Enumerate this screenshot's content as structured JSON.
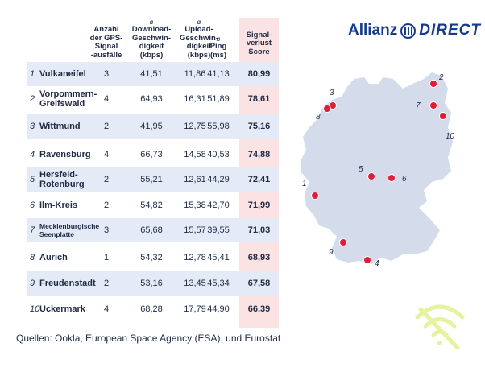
{
  "headers": {
    "outages": "Anzahl\nder GPS-\nSignal\n-ausfälle",
    "download": "Download-\nGeschwin-\ndigkeit\n(kbps)",
    "upload": "Upload-\nGeschwin-\ndigkeit\n(kbps)",
    "ping": "Ping\n(ms)",
    "score": "Signal-\nverlust\nScore",
    "symbol": "ø"
  },
  "rows": [
    {
      "rank": "1",
      "name": "Vulkaneifel",
      "outages": "3",
      "download": "41,51",
      "upload": "11,86",
      "ping": "41,13",
      "score": "80,99"
    },
    {
      "rank": "2",
      "name": "Vorpommern-\nGreifswald",
      "outages": "4",
      "download": "64,93",
      "upload": "16,31",
      "ping": "51,89",
      "score": "78,61"
    },
    {
      "rank": "3",
      "name": "Wittmund",
      "outages": "2",
      "download": "41,95",
      "upload": "12,75",
      "ping": "55,98",
      "score": "75,16"
    },
    {
      "rank": "4",
      "name": "Ravensburg",
      "outages": "4",
      "download": "66,73",
      "upload": "14,58",
      "ping": "40,53",
      "score": "74,88"
    },
    {
      "rank": "5",
      "name": "Hersfeld-\nRotenburg",
      "outages": "2",
      "download": "55,21",
      "upload": "12,61",
      "ping": "44,29",
      "score": "72,41"
    },
    {
      "rank": "6",
      "name": "Ilm-Kreis",
      "outages": "2",
      "download": "54,82",
      "upload": "15,38",
      "ping": "42,70",
      "score": "71,99"
    },
    {
      "rank": "7",
      "name": "Mecklenburgische\nSeenplatte",
      "outages": "3",
      "download": "65,68",
      "upload": "15,57",
      "ping": "39,55",
      "score": "71,03"
    },
    {
      "rank": "8",
      "name": "Aurich",
      "outages": "1",
      "download": "54,32",
      "upload": "12,78",
      "ping": "45,41",
      "score": "68,93"
    },
    {
      "rank": "9",
      "name": "Freudenstadt",
      "outages": "2",
      "download": "53,16",
      "upload": "13,45",
      "ping": "45,34",
      "score": "67,58"
    },
    {
      "rank": "10",
      "name": "Uckermark",
      "outages": "4",
      "download": "68,28",
      "upload": "17,79",
      "ping": "44,90",
      "score": "66,39"
    }
  ],
  "logo": {
    "brand": "Allianz",
    "product": "DIRECT"
  },
  "source": "Quellen: Ookla, European Space Agency (ESA), und Eurostat",
  "map_labels": [
    "1",
    "2",
    "3",
    "4",
    "5",
    "6",
    "7",
    "8",
    "9",
    "10"
  ],
  "colors": {
    "navy": "#163b8c",
    "marker": "#e01e37",
    "map": "#d4dcec",
    "score_bg": "#fbe3e4",
    "row_shade": "#e4ebf7",
    "wifi_icon": "#e6f39c"
  },
  "icons": {
    "no_signal": "wifi-off-icon",
    "logo_mark": "allianz-eagle-icon"
  }
}
